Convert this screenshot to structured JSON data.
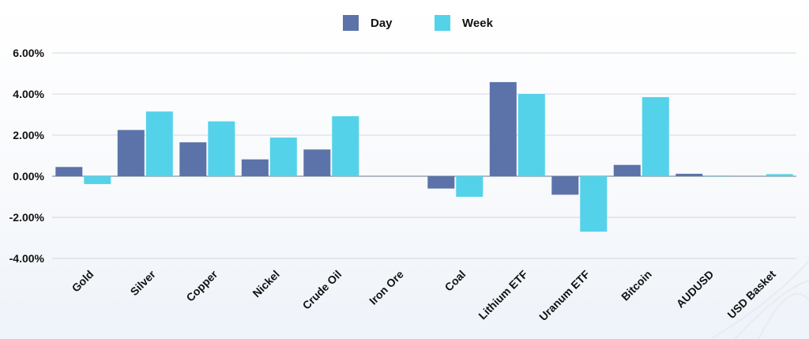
{
  "chart_data": {
    "type": "bar",
    "title": "",
    "xlabel": "",
    "ylabel": "",
    "ylim": [
      -4,
      6
    ],
    "yticks": [
      "6.00%",
      "4.00%",
      "2.00%",
      "0.00%",
      "-2.00%",
      "-4.00%"
    ],
    "ytick_values": [
      6,
      4,
      2,
      0,
      -2,
      -4
    ],
    "grid": true,
    "legend_position": "top-center",
    "categories": [
      "Gold",
      "Silver",
      "Copper",
      "Nickel",
      "Crude Oil",
      "Iron Ore",
      "Coal",
      "Lithium ETF",
      "Uranum ETF",
      "Bitcoin",
      "AUDUSD",
      "USD Basket"
    ],
    "series": [
      {
        "name": "Day",
        "color": "#5b73a8",
        "values": [
          0.45,
          2.25,
          1.65,
          0.82,
          1.3,
          0.0,
          -0.6,
          4.58,
          -0.9,
          0.55,
          0.12,
          0.0
        ]
      },
      {
        "name": "Week",
        "color": "#53d2ea",
        "values": [
          -0.38,
          3.15,
          2.67,
          1.88,
          2.92,
          0.0,
          -1.0,
          4.0,
          -2.7,
          3.85,
          0.03,
          0.1
        ]
      }
    ]
  }
}
